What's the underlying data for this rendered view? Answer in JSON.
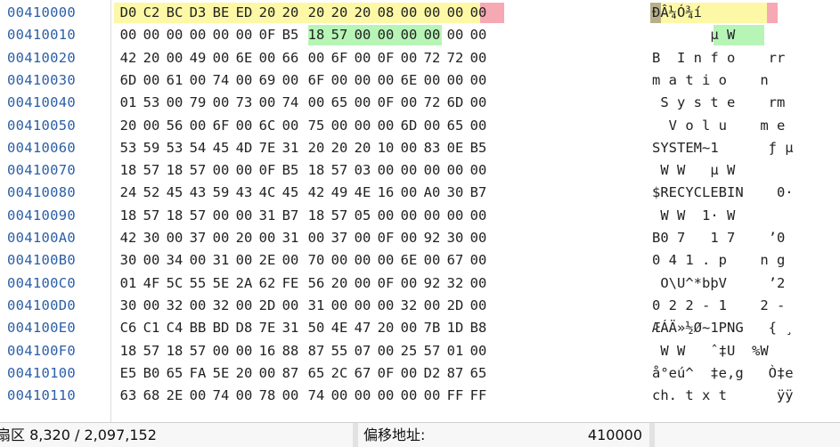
{
  "rows": [
    {
      "offset": "00410000",
      "hex": [
        "D0",
        "C2",
        "BC",
        "D3",
        "BE",
        "ED",
        "20",
        "20",
        "20",
        "20",
        "20",
        "08",
        "00",
        "00",
        "00",
        "00"
      ],
      "ascii": "ÐÂ¼Ó¾í"
    },
    {
      "offset": "00410010",
      "hex": [
        "00",
        "00",
        "00",
        "00",
        "00",
        "00",
        "0F",
        "B5",
        "18",
        "57",
        "00",
        "00",
        "00",
        "00",
        "00",
        "00"
      ],
      "ascii": "       µ W"
    },
    {
      "offset": "00410020",
      "hex": [
        "42",
        "20",
        "00",
        "49",
        "00",
        "6E",
        "00",
        "66",
        "00",
        "6F",
        "00",
        "0F",
        "00",
        "72",
        "72",
        "00"
      ],
      "ascii": "B  I n f o    rr"
    },
    {
      "offset": "00410030",
      "hex": [
        "6D",
        "00",
        "61",
        "00",
        "74",
        "00",
        "69",
        "00",
        "6F",
        "00",
        "00",
        "00",
        "6E",
        "00",
        "00",
        "00"
      ],
      "ascii": "m a t i o    n"
    },
    {
      "offset": "00410040",
      "hex": [
        "01",
        "53",
        "00",
        "79",
        "00",
        "73",
        "00",
        "74",
        "00",
        "65",
        "00",
        "0F",
        "00",
        "72",
        "6D",
        "00"
      ],
      "ascii": " S y s t e    rm"
    },
    {
      "offset": "00410050",
      "hex": [
        "20",
        "00",
        "56",
        "00",
        "6F",
        "00",
        "6C",
        "00",
        "75",
        "00",
        "00",
        "00",
        "6D",
        "00",
        "65",
        "00"
      ],
      "ascii": "  V o l u    m e"
    },
    {
      "offset": "00410060",
      "hex": [
        "53",
        "59",
        "53",
        "54",
        "45",
        "4D",
        "7E",
        "31",
        "20",
        "20",
        "20",
        "10",
        "00",
        "83",
        "0E",
        "B5"
      ],
      "ascii": "SYSTEM~1      ƒ µ"
    },
    {
      "offset": "00410070",
      "hex": [
        "18",
        "57",
        "18",
        "57",
        "00",
        "00",
        "0F",
        "B5",
        "18",
        "57",
        "03",
        "00",
        "00",
        "00",
        "00",
        "00"
      ],
      "ascii": " W W   µ W"
    },
    {
      "offset": "00410080",
      "hex": [
        "24",
        "52",
        "45",
        "43",
        "59",
        "43",
        "4C",
        "45",
        "42",
        "49",
        "4E",
        "16",
        "00",
        "A0",
        "30",
        "B7"
      ],
      "ascii": "$RECYCLEBIN    0·"
    },
    {
      "offset": "00410090",
      "hex": [
        "18",
        "57",
        "18",
        "57",
        "00",
        "00",
        "31",
        "B7",
        "18",
        "57",
        "05",
        "00",
        "00",
        "00",
        "00",
        "00"
      ],
      "ascii": " W W  1· W"
    },
    {
      "offset": "004100A0",
      "hex": [
        "42",
        "30",
        "00",
        "37",
        "00",
        "20",
        "00",
        "31",
        "00",
        "37",
        "00",
        "0F",
        "00",
        "92",
        "30",
        "00"
      ],
      "ascii": "B0 7   1 7    ’0"
    },
    {
      "offset": "004100B0",
      "hex": [
        "30",
        "00",
        "34",
        "00",
        "31",
        "00",
        "2E",
        "00",
        "70",
        "00",
        "00",
        "00",
        "6E",
        "00",
        "67",
        "00"
      ],
      "ascii": "0 4 1 . p    n g"
    },
    {
      "offset": "004100C0",
      "hex": [
        "01",
        "4F",
        "5C",
        "55",
        "5E",
        "2A",
        "62",
        "FE",
        "56",
        "20",
        "00",
        "0F",
        "00",
        "92",
        "32",
        "00"
      ],
      "ascii": " O\\U^*bþV     ’2"
    },
    {
      "offset": "004100D0",
      "hex": [
        "30",
        "00",
        "32",
        "00",
        "32",
        "00",
        "2D",
        "00",
        "31",
        "00",
        "00",
        "00",
        "32",
        "00",
        "2D",
        "00"
      ],
      "ascii": "0 2 2 - 1    2 -"
    },
    {
      "offset": "004100E0",
      "hex": [
        "C6",
        "C1",
        "C4",
        "BB",
        "BD",
        "D8",
        "7E",
        "31",
        "50",
        "4E",
        "47",
        "20",
        "00",
        "7B",
        "1D",
        "B8"
      ],
      "ascii": "ÆÁÄ»½Ø~1PNG   { ¸"
    },
    {
      "offset": "004100F0",
      "hex": [
        "18",
        "57",
        "18",
        "57",
        "00",
        "00",
        "16",
        "88",
        "87",
        "55",
        "07",
        "00",
        "25",
        "57",
        "01",
        "00"
      ],
      "ascii": " W W   ˆ‡U  %W"
    },
    {
      "offset": "00410100",
      "hex": [
        "E5",
        "B0",
        "65",
        "FA",
        "5E",
        "20",
        "00",
        "87",
        "65",
        "2C",
        "67",
        "0F",
        "00",
        "D2",
        "87",
        "65"
      ],
      "ascii": "å°eú^  ‡e,g   Ò‡e"
    },
    {
      "offset": "00410110",
      "hex": [
        "63",
        "68",
        "2E",
        "00",
        "74",
        "00",
        "78",
        "00",
        "74",
        "00",
        "00",
        "00",
        "00",
        "00",
        "FF",
        "FF"
      ],
      "ascii": "ch. t x t      ÿÿ"
    }
  ],
  "status": {
    "sector": "扇区 8,320 / 2,097,152",
    "offset_label": "偏移地址:",
    "offset_value": "410000"
  }
}
